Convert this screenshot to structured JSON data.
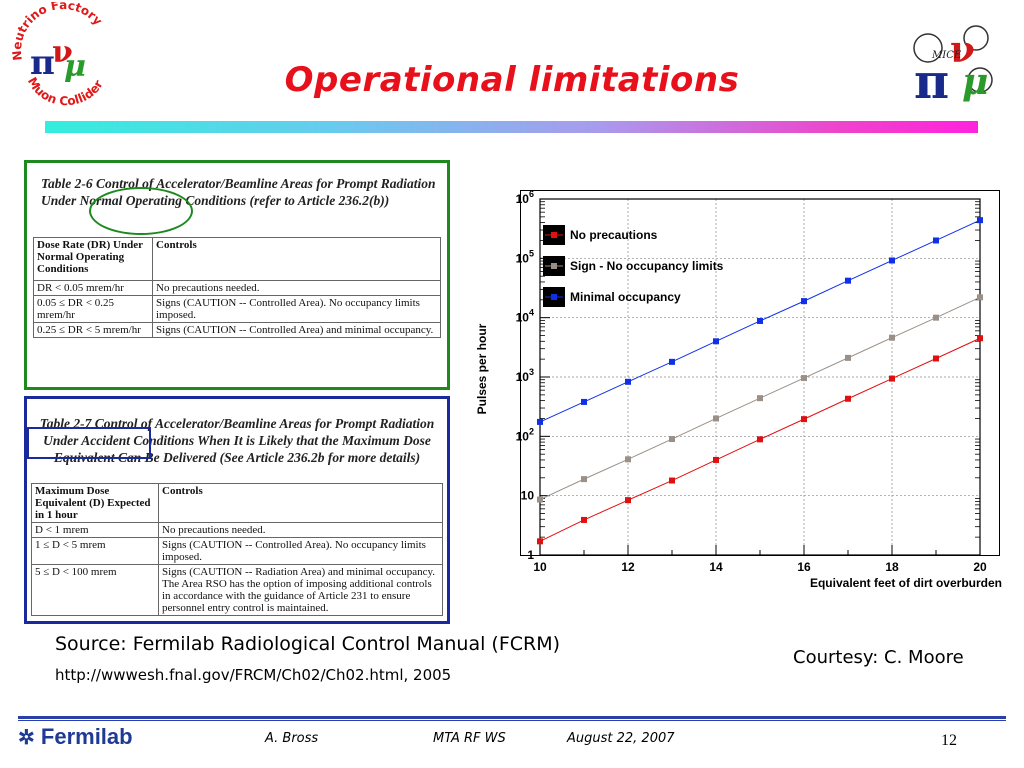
{
  "slide": {
    "title": "Operational limitations",
    "logo_left": {
      "text_top": "Neutrino Factory",
      "text_bottom": "Muon Collider"
    },
    "logo_right": {
      "label": "MICE"
    }
  },
  "table_2_6": {
    "caption": "Table 2-6 Control of Accelerator/Beamline Areas for Prompt Radiation Under Normal Operating Conditions (refer to Article 236.2(b))",
    "headers": [
      "Dose Rate (DR) Under Normal Operating Conditions",
      "Controls"
    ],
    "rows": [
      [
        "DR < 0.05 mrem/hr",
        "No precautions needed."
      ],
      [
        "0.05 ≤ DR < 0.25 mrem/hr",
        "Signs (CAUTION -- Controlled Area). No occupancy limits imposed."
      ],
      [
        "0.25 ≤ DR < 5 mrem/hr",
        "Signs (CAUTION -- Controlled Area) and minimal occupancy."
      ]
    ]
  },
  "table_2_7": {
    "caption": "Table 2-7 Control of Accelerator/Beamline Areas for Prompt Radiation Under Accident Conditions When It is Likely that the Maximum Dose Equivalent Can Be Delivered (See Article 236.2b for more details)",
    "headers": [
      "Maximum Dose Equivalent (D) Expected in 1 hour",
      "Controls"
    ],
    "rows": [
      [
        "D < 1 mrem",
        "No precautions needed."
      ],
      [
        "1 ≤ D < 5 mrem",
        "Signs (CAUTION -- Controlled Area). No occupancy limits imposed."
      ],
      [
        "5 ≤ D < 100 mrem",
        "Signs (CAUTION -- Radiation Area) and minimal occupancy. The Area RSO has the option of imposing additional controls in accordance with the guidance of Article 231 to ensure personnel entry control is maintained."
      ]
    ]
  },
  "chart_data": {
    "type": "scatter",
    "xlabel": "Equivalent feet of dirt overburden",
    "ylabel": "Pulses per hour",
    "xlim": [
      10,
      20
    ],
    "ylim": [
      1,
      1000000
    ],
    "yscale": "log",
    "x_ticks": [
      "10",
      "12",
      "14",
      "16",
      "18",
      "20"
    ],
    "y_ticks": [
      "1",
      "10",
      "10^2",
      "10^3",
      "10^4",
      "10^5",
      "10^6"
    ],
    "legend_position": "top-left",
    "x": [
      10,
      11,
      12,
      13,
      14,
      15,
      16,
      17,
      18,
      19,
      20
    ],
    "series": [
      {
        "name": "No precautions",
        "color": "#e01010",
        "values": [
          1.7,
          3.9,
          8.4,
          18,
          40,
          89,
          195,
          430,
          940,
          2050,
          4500
        ]
      },
      {
        "name": "Sign - No occupancy limits",
        "color": "#9a9088",
        "values": [
          8.6,
          19,
          41,
          90,
          200,
          440,
          960,
          2100,
          4600,
          10000,
          22000
        ]
      },
      {
        "name": "Minimal occupancy",
        "color": "#1030e8",
        "values": [
          175,
          380,
          830,
          1800,
          4000,
          8800,
          19000,
          42000,
          92000,
          200000,
          440000
        ]
      }
    ]
  },
  "footer_text": {
    "source": "Source: Fermilab Radiological Control Manual (FCRM)",
    "url": "http://wwwesh.fnal.gov/FRCM/Ch02/Ch02.html, 2005",
    "courtesy": "Courtesy: C. Moore",
    "logo": "Fermilab",
    "author": "A. Bross",
    "event": "MTA RF WS",
    "date": "August 22, 2007",
    "page": "12"
  }
}
